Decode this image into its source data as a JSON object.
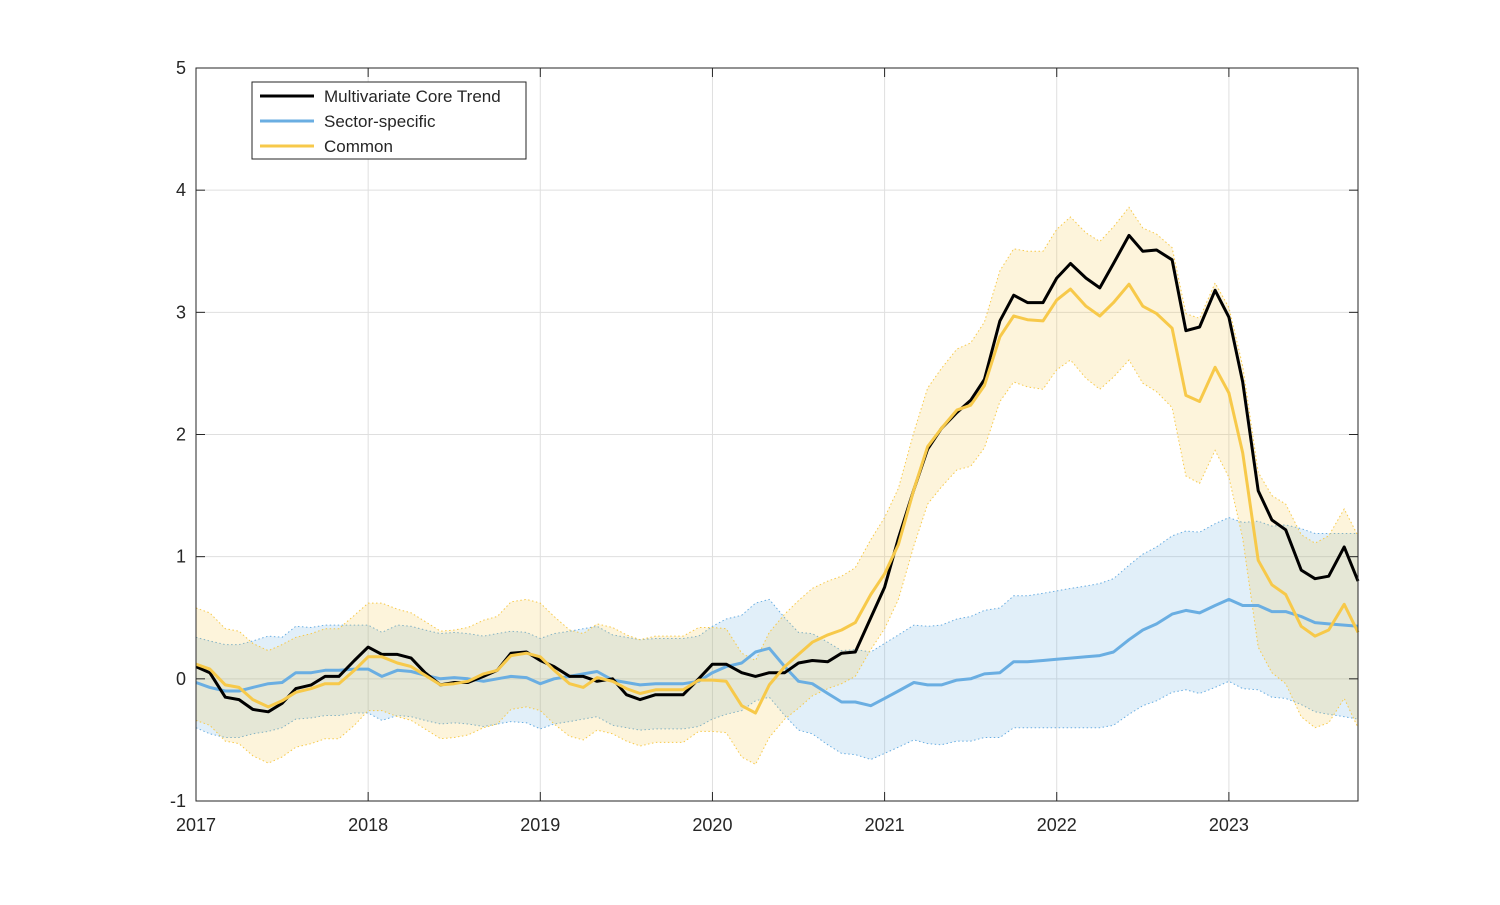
{
  "chart_data": {
    "type": "line",
    "xlim": [
      2017,
      2023.75
    ],
    "ylim": [
      -1,
      5
    ],
    "x_ticks": [
      2017,
      2018,
      2019,
      2020,
      2021,
      2022,
      2023
    ],
    "x_tick_labels": [
      "2017",
      "2018",
      "2019",
      "2020",
      "2021",
      "2022",
      "2023"
    ],
    "y_ticks": [
      -1,
      0,
      1,
      2,
      3,
      4,
      5
    ],
    "y_tick_labels": [
      "-1",
      "0",
      "1",
      "2",
      "3",
      "4",
      "5"
    ],
    "grid": true,
    "legend_position": "top-left",
    "x": [
      2017.0,
      2017.08,
      2017.17,
      2017.25,
      2017.33,
      2017.42,
      2017.5,
      2017.58,
      2017.67,
      2017.75,
      2017.83,
      2017.92,
      2018.0,
      2018.08,
      2018.17,
      2018.25,
      2018.33,
      2018.42,
      2018.5,
      2018.58,
      2018.67,
      2018.75,
      2018.83,
      2018.92,
      2019.0,
      2019.08,
      2019.17,
      2019.25,
      2019.33,
      2019.42,
      2019.5,
      2019.58,
      2019.67,
      2019.75,
      2019.83,
      2019.92,
      2020.0,
      2020.08,
      2020.17,
      2020.25,
      2020.33,
      2020.42,
      2020.5,
      2020.58,
      2020.67,
      2020.75,
      2020.83,
      2020.92,
      2021.0,
      2021.08,
      2021.17,
      2021.25,
      2021.33,
      2021.42,
      2021.5,
      2021.58,
      2021.67,
      2021.75,
      2021.83,
      2021.92,
      2022.0,
      2022.08,
      2022.17,
      2022.25,
      2022.33,
      2022.42,
      2022.5,
      2022.58,
      2022.67,
      2022.75,
      2022.83,
      2022.92,
      2023.0,
      2023.08,
      2023.17,
      2023.25,
      2023.33,
      2023.42,
      2023.5,
      2023.58,
      2023.67,
      2023.75
    ],
    "series": [
      {
        "name": "Multivariate Core Trend",
        "color": "#000000",
        "values": [
          0.1,
          0.05,
          -0.15,
          -0.17,
          -0.25,
          -0.27,
          -0.2,
          -0.08,
          -0.05,
          0.02,
          0.02,
          0.15,
          0.26,
          0.2,
          0.2,
          0.17,
          0.05,
          -0.05,
          -0.03,
          -0.03,
          0.02,
          0.07,
          0.21,
          0.22,
          0.15,
          0.1,
          0.02,
          0.02,
          -0.02,
          0.0,
          -0.13,
          -0.17,
          -0.13,
          -0.13,
          -0.13,
          0.0,
          0.12,
          0.12,
          0.05,
          0.02,
          0.05,
          0.05,
          0.13,
          0.15,
          0.14,
          0.21,
          0.22,
          0.5,
          0.75,
          1.15,
          1.55,
          1.88,
          2.05,
          2.18,
          2.28,
          2.45,
          2.93,
          3.14,
          3.08,
          3.08,
          3.28,
          3.4,
          3.28,
          3.2,
          3.4,
          3.63,
          3.5,
          3.51,
          3.43,
          2.85,
          2.88,
          3.18,
          2.96,
          2.43,
          1.54,
          1.3,
          1.22,
          0.89,
          0.82,
          0.84,
          1.08,
          0.8
        ]
      },
      {
        "name": "Sector-specific",
        "color": "#6aaee2",
        "values": [
          -0.03,
          -0.07,
          -0.1,
          -0.1,
          -0.07,
          -0.04,
          -0.03,
          0.05,
          0.05,
          0.07,
          0.07,
          0.08,
          0.08,
          0.02,
          0.07,
          0.06,
          0.03,
          0.0,
          0.01,
          0.0,
          -0.02,
          0.0,
          0.02,
          0.01,
          -0.04,
          0.0,
          0.02,
          0.04,
          0.06,
          -0.01,
          -0.03,
          -0.05,
          -0.04,
          -0.04,
          -0.04,
          -0.02,
          0.05,
          0.1,
          0.13,
          0.22,
          0.25,
          0.1,
          -0.02,
          -0.04,
          -0.12,
          -0.19,
          -0.19,
          -0.22,
          -0.16,
          -0.1,
          -0.03,
          -0.05,
          -0.05,
          -0.01,
          0.0,
          0.04,
          0.05,
          0.14,
          0.14,
          0.15,
          0.16,
          0.17,
          0.18,
          0.19,
          0.22,
          0.32,
          0.4,
          0.45,
          0.53,
          0.56,
          0.54,
          0.6,
          0.65,
          0.6,
          0.6,
          0.55,
          0.55,
          0.51,
          0.46,
          0.45,
          0.44,
          0.43
        ]
      },
      {
        "name": "Common",
        "color": "#f7c94a",
        "values": [
          0.12,
          0.08,
          -0.05,
          -0.07,
          -0.17,
          -0.23,
          -0.18,
          -0.11,
          -0.08,
          -0.04,
          -0.04,
          0.07,
          0.18,
          0.18,
          0.13,
          0.1,
          0.03,
          -0.05,
          -0.04,
          -0.02,
          0.04,
          0.07,
          0.19,
          0.21,
          0.18,
          0.07,
          -0.04,
          -0.07,
          0.01,
          -0.02,
          -0.08,
          -0.12,
          -0.09,
          -0.09,
          -0.09,
          -0.01,
          -0.01,
          -0.02,
          -0.22,
          -0.28,
          -0.05,
          0.1,
          0.2,
          0.3,
          0.36,
          0.4,
          0.46,
          0.69,
          0.86,
          1.1,
          1.55,
          1.9,
          2.05,
          2.2,
          2.24,
          2.4,
          2.8,
          2.97,
          2.94,
          2.93,
          3.1,
          3.19,
          3.05,
          2.97,
          3.08,
          3.23,
          3.05,
          2.99,
          2.87,
          2.32,
          2.27,
          2.55,
          2.34,
          1.85,
          0.97,
          0.77,
          0.69,
          0.43,
          0.35,
          0.4,
          0.61,
          0.38
        ]
      }
    ],
    "bands": [
      {
        "color": "#6aaee2",
        "lower": [
          -0.4,
          -0.45,
          -0.48,
          -0.48,
          -0.45,
          -0.43,
          -0.4,
          -0.33,
          -0.32,
          -0.3,
          -0.3,
          -0.28,
          -0.28,
          -0.34,
          -0.3,
          -0.31,
          -0.34,
          -0.37,
          -0.36,
          -0.37,
          -0.39,
          -0.37,
          -0.35,
          -0.36,
          -0.41,
          -0.37,
          -0.35,
          -0.33,
          -0.31,
          -0.38,
          -0.4,
          -0.42,
          -0.41,
          -0.41,
          -0.41,
          -0.39,
          -0.33,
          -0.29,
          -0.26,
          -0.18,
          -0.15,
          -0.3,
          -0.42,
          -0.45,
          -0.54,
          -0.61,
          -0.62,
          -0.66,
          -0.61,
          -0.56,
          -0.5,
          -0.53,
          -0.54,
          -0.51,
          -0.51,
          -0.48,
          -0.48,
          -0.4,
          -0.4,
          -0.4,
          -0.4,
          -0.4,
          -0.4,
          -0.4,
          -0.38,
          -0.29,
          -0.22,
          -0.18,
          -0.11,
          -0.09,
          -0.12,
          -0.07,
          -0.02,
          -0.08,
          -0.09,
          -0.15,
          -0.16,
          -0.21,
          -0.27,
          -0.29,
          -0.31,
          -0.33
        ],
        "upper": [
          0.34,
          0.31,
          0.28,
          0.28,
          0.31,
          0.35,
          0.34,
          0.43,
          0.42,
          0.44,
          0.44,
          0.44,
          0.44,
          0.38,
          0.44,
          0.43,
          0.4,
          0.37,
          0.38,
          0.37,
          0.35,
          0.37,
          0.39,
          0.38,
          0.33,
          0.37,
          0.39,
          0.41,
          0.43,
          0.36,
          0.34,
          0.32,
          0.33,
          0.33,
          0.33,
          0.35,
          0.43,
          0.49,
          0.52,
          0.62,
          0.65,
          0.5,
          0.38,
          0.37,
          0.3,
          0.23,
          0.24,
          0.22,
          0.29,
          0.36,
          0.44,
          0.43,
          0.44,
          0.49,
          0.51,
          0.56,
          0.58,
          0.68,
          0.68,
          0.7,
          0.72,
          0.74,
          0.76,
          0.78,
          0.82,
          0.93,
          1.02,
          1.08,
          1.17,
          1.21,
          1.2,
          1.27,
          1.32,
          1.28,
          1.29,
          1.25,
          1.26,
          1.23,
          1.19,
          1.19,
          1.19,
          1.19
        ]
      },
      {
        "color": "#f7c94a",
        "lower": [
          -0.34,
          -0.38,
          -0.51,
          -0.53,
          -0.63,
          -0.69,
          -0.64,
          -0.56,
          -0.53,
          -0.49,
          -0.49,
          -0.38,
          -0.26,
          -0.26,
          -0.31,
          -0.34,
          -0.41,
          -0.49,
          -0.48,
          -0.46,
          -0.4,
          -0.37,
          -0.25,
          -0.23,
          -0.26,
          -0.37,
          -0.47,
          -0.5,
          -0.42,
          -0.45,
          -0.51,
          -0.55,
          -0.52,
          -0.52,
          -0.52,
          -0.43,
          -0.43,
          -0.44,
          -0.64,
          -0.7,
          -0.48,
          -0.33,
          -0.24,
          -0.14,
          -0.08,
          -0.04,
          0.02,
          0.24,
          0.41,
          0.65,
          1.09,
          1.43,
          1.57,
          1.71,
          1.74,
          1.89,
          2.27,
          2.43,
          2.39,
          2.37,
          2.53,
          2.61,
          2.46,
          2.37,
          2.47,
          2.61,
          2.42,
          2.35,
          2.22,
          1.66,
          1.6,
          1.87,
          1.65,
          1.15,
          0.26,
          0.05,
          -0.04,
          -0.31,
          -0.4,
          -0.36,
          -0.16,
          -0.4
        ],
        "upper": [
          0.58,
          0.54,
          0.41,
          0.39,
          0.29,
          0.23,
          0.28,
          0.34,
          0.37,
          0.41,
          0.41,
          0.52,
          0.62,
          0.62,
          0.57,
          0.54,
          0.47,
          0.39,
          0.4,
          0.42,
          0.48,
          0.51,
          0.63,
          0.65,
          0.62,
          0.51,
          0.4,
          0.37,
          0.45,
          0.42,
          0.36,
          0.32,
          0.35,
          0.35,
          0.35,
          0.42,
          0.42,
          0.41,
          0.21,
          0.15,
          0.38,
          0.53,
          0.64,
          0.74,
          0.8,
          0.84,
          0.91,
          1.14,
          1.32,
          1.56,
          2.02,
          2.38,
          2.54,
          2.7,
          2.75,
          2.92,
          3.34,
          3.52,
          3.5,
          3.5,
          3.68,
          3.78,
          3.65,
          3.58,
          3.7,
          3.86,
          3.69,
          3.64,
          3.53,
          2.99,
          2.95,
          3.24,
          3.04,
          2.56,
          1.69,
          1.5,
          1.43,
          1.18,
          1.11,
          1.17,
          1.39,
          1.17
        ]
      }
    ],
    "legend": [
      {
        "label": "Multivariate Core Trend",
        "color": "#000000"
      },
      {
        "label": "Sector-specific",
        "color": "#6aaee2"
      },
      {
        "label": "Common",
        "color": "#f7c94a"
      }
    ]
  }
}
